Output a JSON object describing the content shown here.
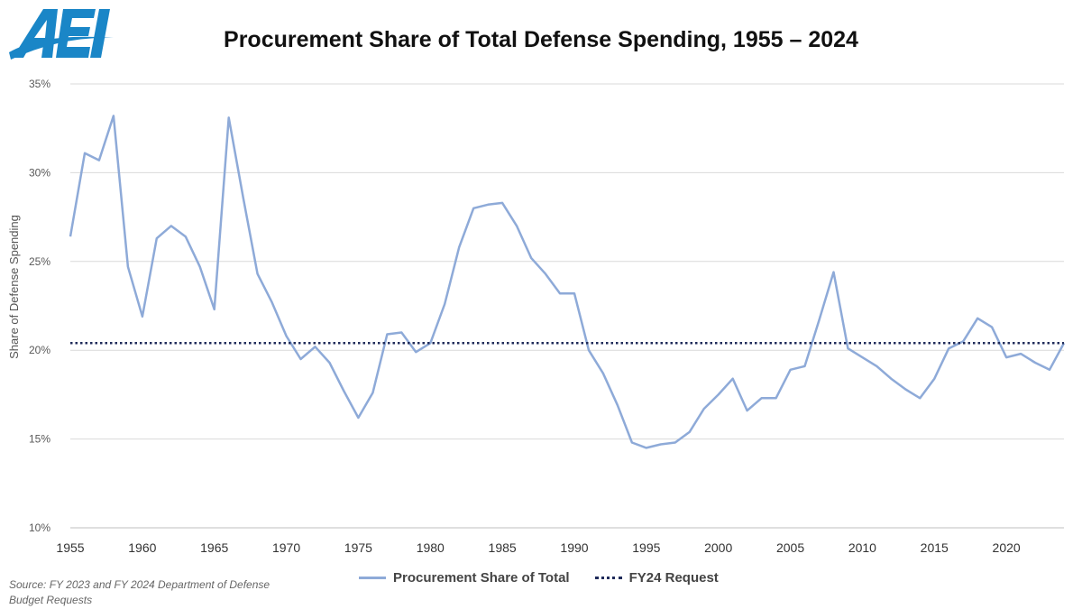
{
  "logo_text": "AEI",
  "chart_data": {
    "type": "line",
    "title": "Procurement Share of Total Defense Spending, 1955 – 2024",
    "xlabel": "",
    "ylabel": "Share of Defense Spending",
    "xlim": [
      1955,
      2024
    ],
    "ylim": [
      10,
      35
    ],
    "y_ticks": [
      10,
      15,
      20,
      25,
      30,
      35
    ],
    "y_tick_labels": [
      "10%",
      "15%",
      "20%",
      "25%",
      "30%",
      "35%"
    ],
    "x_ticks": [
      1955,
      1960,
      1965,
      1970,
      1975,
      1980,
      1985,
      1990,
      1995,
      2000,
      2005,
      2010,
      2015,
      2020
    ],
    "x_tick_labels": [
      "1955",
      "1960",
      "1965",
      "1970",
      "1975",
      "1980",
      "1985",
      "1990",
      "1995",
      "2000",
      "2005",
      "2010",
      "2015",
      "2020"
    ],
    "grid": "horizontal",
    "legend_position": "bottom",
    "series": [
      {
        "name": "Procurement Share of Total",
        "color": "#8eaad8",
        "style": "solid",
        "x": [
          1955,
          1956,
          1957,
          1958,
          1959,
          1960,
          1961,
          1962,
          1963,
          1964,
          1965,
          1966,
          1967,
          1968,
          1969,
          1970,
          1971,
          1972,
          1973,
          1974,
          1975,
          1976,
          1977,
          1978,
          1979,
          1980,
          1981,
          1982,
          1983,
          1984,
          1985,
          1986,
          1987,
          1988,
          1989,
          1990,
          1991,
          1992,
          1993,
          1994,
          1995,
          1996,
          1997,
          1998,
          1999,
          2000,
          2001,
          2002,
          2003,
          2004,
          2005,
          2006,
          2007,
          2008,
          2009,
          2010,
          2011,
          2012,
          2013,
          2014,
          2015,
          2016,
          2017,
          2018,
          2019,
          2020,
          2021,
          2022,
          2023,
          2024
        ],
        "values": [
          26.4,
          31.1,
          30.7,
          33.2,
          24.7,
          21.9,
          26.3,
          27.0,
          26.4,
          24.7,
          22.3,
          33.1,
          28.6,
          24.3,
          22.7,
          20.8,
          19.5,
          20.2,
          19.3,
          17.7,
          16.2,
          17.6,
          20.9,
          21.0,
          19.9,
          20.4,
          22.6,
          25.8,
          28.0,
          28.2,
          28.3,
          27.0,
          25.2,
          24.3,
          23.2,
          23.2,
          20.0,
          18.7,
          16.9,
          14.8,
          14.5,
          14.7,
          14.8,
          15.4,
          16.7,
          17.5,
          18.4,
          16.6,
          17.3,
          17.3,
          18.9,
          19.1,
          21.7,
          24.4,
          20.1,
          19.6,
          19.1,
          18.4,
          17.8,
          17.3,
          18.4,
          20.1,
          20.5,
          21.8,
          21.3,
          19.6,
          19.8,
          19.3,
          18.9,
          20.4
        ]
      },
      {
        "name": "FY24 Request",
        "color": "#1f2b5a",
        "style": "dotted",
        "x": [
          1955,
          2024
        ],
        "values": [
          20.4,
          20.4
        ]
      }
    ]
  },
  "source_text": "Source: FY 2023  and FY 2024  Department of Defense Budget Requests"
}
